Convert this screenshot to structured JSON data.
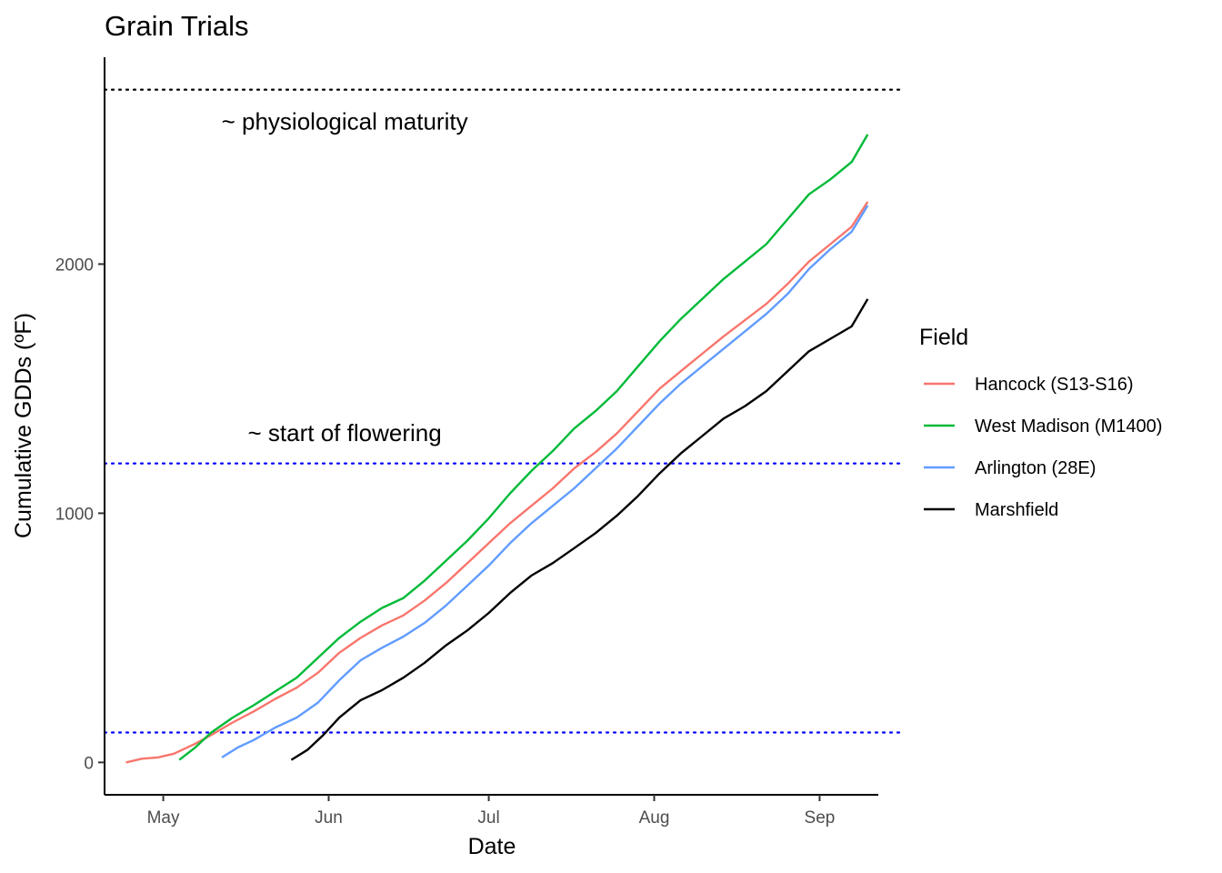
{
  "chart_data": {
    "type": "line",
    "title": "Grain Trials",
    "xlabel": "Date",
    "ylabel": "Cumulative GDDs (ºF)",
    "x_ticks": [
      {
        "label": "May",
        "date": "2021-05-01"
      },
      {
        "label": "Jun",
        "date": "2021-06-01"
      },
      {
        "label": "Jul",
        "date": "2021-07-01"
      },
      {
        "label": "Aug",
        "date": "2021-08-01"
      },
      {
        "label": "Sep",
        "date": "2021-09-01"
      }
    ],
    "y_ticks": [
      0,
      1000,
      2000
    ],
    "xlim": [
      "2021-04-20",
      "2021-09-12"
    ],
    "ylim": [
      -130,
      2830
    ],
    "grid": false,
    "legend": {
      "title": "Field",
      "position": "right"
    },
    "reference_lines": [
      {
        "y": 120,
        "color": "#0000ff",
        "style": "dotted"
      },
      {
        "y": 1200,
        "color": "#0000ff",
        "style": "dotted",
        "label": "~ start of flowering",
        "label_date": "2021-06-04",
        "label_y": 1290
      },
      {
        "y": 2700,
        "color": "#000000",
        "style": "dotted",
        "label": "~ physiological maturity",
        "label_date": "2021-06-04",
        "label_y": 2540
      }
    ],
    "series": [
      {
        "name": "Hancock (S13-S16)",
        "color": "#f8766d",
        "points": [
          [
            "2021-04-24",
            0
          ],
          [
            "2021-04-27",
            15
          ],
          [
            "2021-04-30",
            20
          ],
          [
            "2021-05-03",
            35
          ],
          [
            "2021-05-07",
            75
          ],
          [
            "2021-05-10",
            110
          ],
          [
            "2021-05-14",
            160
          ],
          [
            "2021-05-18",
            205
          ],
          [
            "2021-05-22",
            255
          ],
          [
            "2021-05-26",
            300
          ],
          [
            "2021-05-30",
            360
          ],
          [
            "2021-06-03",
            440
          ],
          [
            "2021-06-07",
            500
          ],
          [
            "2021-06-11",
            550
          ],
          [
            "2021-06-15",
            590
          ],
          [
            "2021-06-19",
            650
          ],
          [
            "2021-06-23",
            720
          ],
          [
            "2021-06-27",
            800
          ],
          [
            "2021-07-01",
            880
          ],
          [
            "2021-07-05",
            960
          ],
          [
            "2021-07-09",
            1030
          ],
          [
            "2021-07-13",
            1100
          ],
          [
            "2021-07-17",
            1180
          ],
          [
            "2021-07-21",
            1245
          ],
          [
            "2021-07-25",
            1320
          ],
          [
            "2021-07-29",
            1410
          ],
          [
            "2021-08-02",
            1500
          ],
          [
            "2021-08-06",
            1570
          ],
          [
            "2021-08-10",
            1640
          ],
          [
            "2021-08-14",
            1710
          ],
          [
            "2021-08-18",
            1775
          ],
          [
            "2021-08-22",
            1840
          ],
          [
            "2021-08-26",
            1920
          ],
          [
            "2021-08-30",
            2010
          ],
          [
            "2021-09-03",
            2080
          ],
          [
            "2021-09-07",
            2150
          ],
          [
            "2021-09-10",
            2250
          ]
        ]
      },
      {
        "name": "West Madison (M1400)",
        "color": "#00ba38",
        "points": [
          [
            "2021-05-04",
            10
          ],
          [
            "2021-05-07",
            60
          ],
          [
            "2021-05-10",
            120
          ],
          [
            "2021-05-14",
            180
          ],
          [
            "2021-05-18",
            230
          ],
          [
            "2021-05-22",
            285
          ],
          [
            "2021-05-26",
            340
          ],
          [
            "2021-05-30",
            420
          ],
          [
            "2021-06-03",
            500
          ],
          [
            "2021-06-07",
            565
          ],
          [
            "2021-06-11",
            620
          ],
          [
            "2021-06-15",
            660
          ],
          [
            "2021-06-19",
            730
          ],
          [
            "2021-06-23",
            810
          ],
          [
            "2021-06-27",
            890
          ],
          [
            "2021-07-01",
            980
          ],
          [
            "2021-07-05",
            1080
          ],
          [
            "2021-07-09",
            1170
          ],
          [
            "2021-07-13",
            1250
          ],
          [
            "2021-07-17",
            1340
          ],
          [
            "2021-07-21",
            1410
          ],
          [
            "2021-07-25",
            1490
          ],
          [
            "2021-07-29",
            1590
          ],
          [
            "2021-08-02",
            1690
          ],
          [
            "2021-08-06",
            1780
          ],
          [
            "2021-08-10",
            1860
          ],
          [
            "2021-08-14",
            1940
          ],
          [
            "2021-08-18",
            2010
          ],
          [
            "2021-08-22",
            2080
          ],
          [
            "2021-08-26",
            2180
          ],
          [
            "2021-08-30",
            2280
          ],
          [
            "2021-09-03",
            2340
          ],
          [
            "2021-09-07",
            2410
          ],
          [
            "2021-09-10",
            2520
          ]
        ]
      },
      {
        "name": "Arlington (28E)",
        "color": "#619cff",
        "points": [
          [
            "2021-05-12",
            20
          ],
          [
            "2021-05-15",
            60
          ],
          [
            "2021-05-18",
            90
          ],
          [
            "2021-05-22",
            140
          ],
          [
            "2021-05-26",
            180
          ],
          [
            "2021-05-30",
            240
          ],
          [
            "2021-06-03",
            330
          ],
          [
            "2021-06-07",
            410
          ],
          [
            "2021-06-11",
            460
          ],
          [
            "2021-06-15",
            505
          ],
          [
            "2021-06-19",
            560
          ],
          [
            "2021-06-23",
            630
          ],
          [
            "2021-06-27",
            710
          ],
          [
            "2021-07-01",
            790
          ],
          [
            "2021-07-05",
            880
          ],
          [
            "2021-07-09",
            960
          ],
          [
            "2021-07-13",
            1030
          ],
          [
            "2021-07-17",
            1100
          ],
          [
            "2021-07-21",
            1180
          ],
          [
            "2021-07-25",
            1260
          ],
          [
            "2021-07-29",
            1350
          ],
          [
            "2021-08-02",
            1440
          ],
          [
            "2021-08-06",
            1520
          ],
          [
            "2021-08-10",
            1590
          ],
          [
            "2021-08-14",
            1660
          ],
          [
            "2021-08-18",
            1730
          ],
          [
            "2021-08-22",
            1800
          ],
          [
            "2021-08-26",
            1880
          ],
          [
            "2021-08-30",
            1980
          ],
          [
            "2021-09-03",
            2060
          ],
          [
            "2021-09-07",
            2130
          ],
          [
            "2021-09-10",
            2235
          ]
        ]
      },
      {
        "name": "Marshfield",
        "color": "#000000",
        "points": [
          [
            "2021-05-25",
            10
          ],
          [
            "2021-05-28",
            50
          ],
          [
            "2021-05-31",
            110
          ],
          [
            "2021-06-03",
            180
          ],
          [
            "2021-06-07",
            250
          ],
          [
            "2021-06-11",
            290
          ],
          [
            "2021-06-15",
            340
          ],
          [
            "2021-06-19",
            400
          ],
          [
            "2021-06-23",
            470
          ],
          [
            "2021-06-27",
            530
          ],
          [
            "2021-07-01",
            600
          ],
          [
            "2021-07-05",
            680
          ],
          [
            "2021-07-09",
            750
          ],
          [
            "2021-07-13",
            800
          ],
          [
            "2021-07-17",
            860
          ],
          [
            "2021-07-21",
            920
          ],
          [
            "2021-07-25",
            990
          ],
          [
            "2021-07-29",
            1070
          ],
          [
            "2021-08-02",
            1160
          ],
          [
            "2021-08-06",
            1240
          ],
          [
            "2021-08-10",
            1310
          ],
          [
            "2021-08-14",
            1380
          ],
          [
            "2021-08-18",
            1430
          ],
          [
            "2021-08-22",
            1490
          ],
          [
            "2021-08-26",
            1570
          ],
          [
            "2021-08-30",
            1650
          ],
          [
            "2021-09-03",
            1700
          ],
          [
            "2021-09-07",
            1750
          ],
          [
            "2021-09-10",
            1860
          ]
        ]
      }
    ]
  }
}
